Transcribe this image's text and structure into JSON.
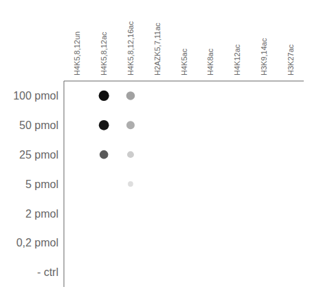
{
  "chart_data": {
    "type": "scatter",
    "x": [
      "H4K5,8,12un",
      "H4K5,8,12ac",
      "H4K5,8,12,16ac",
      "H2AZK5,7,11ac",
      "H4K5ac",
      "H4K8ac",
      "H4K12ac",
      "H3K9,14ac",
      "H3K27ac"
    ],
    "y": [
      "100 pmol",
      "50 pmol",
      "25 pmol",
      "5 pmol",
      "2 pmol",
      "0,2 pmol",
      "- ctrl"
    ],
    "points": [
      {
        "x": "H4K5,8,12ac",
        "y": "100 pmol",
        "size": 95
      },
      {
        "x": "H4K5,8,12ac",
        "y": "50 pmol",
        "size": 90
      },
      {
        "x": "H4K5,8,12ac",
        "y": "25 pmol",
        "size": 65
      },
      {
        "x": "H4K5,8,12,16ac",
        "y": "100 pmol",
        "size": 65
      },
      {
        "x": "H4K5,8,12,16ac",
        "y": "50 pmol",
        "size": 60
      },
      {
        "x": "H4K5,8,12,16ac",
        "y": "25 pmol",
        "size": 40
      },
      {
        "x": "H4K5,8,12,16ac",
        "y": "5 pmol",
        "size": 25
      }
    ],
    "colors": [
      "#0f0f0f",
      "#141414",
      "#595959",
      "#a1a1a1",
      "#adadad",
      "#cccccc",
      "#dedede"
    ],
    "grid": false
  }
}
